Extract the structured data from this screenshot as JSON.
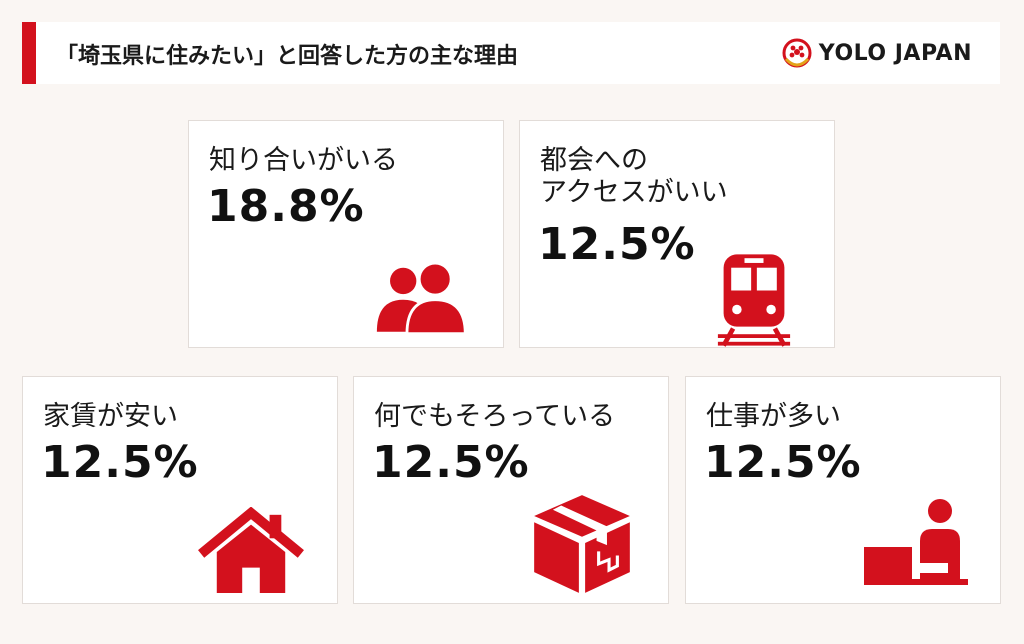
{
  "header": {
    "title": "「埼玉県に住みたい」と回答した方の主な理由",
    "logo_text": "YOLO JAPAN"
  },
  "colors": {
    "accent": "#d3111d",
    "background": "#faf6f3",
    "card": "#ffffff"
  },
  "chart_data": {
    "type": "table",
    "unit": "%",
    "items": [
      {
        "label": "知り合いがいる",
        "value": 18.8,
        "display": "18.8%",
        "icon": "people-icon"
      },
      {
        "label_line1": "都会への",
        "label_line2": "アクセスがいい",
        "value": 12.5,
        "display": "12.5%",
        "icon": "train-icon"
      },
      {
        "label": "家賃が安い",
        "value": 12.5,
        "display": "12.5%",
        "icon": "house-icon"
      },
      {
        "label": "何でもそろっている",
        "value": 12.5,
        "display": "12.5%",
        "icon": "box-icon"
      },
      {
        "label": "仕事が多い",
        "value": 12.5,
        "display": "12.5%",
        "icon": "worker-icon"
      }
    ]
  }
}
